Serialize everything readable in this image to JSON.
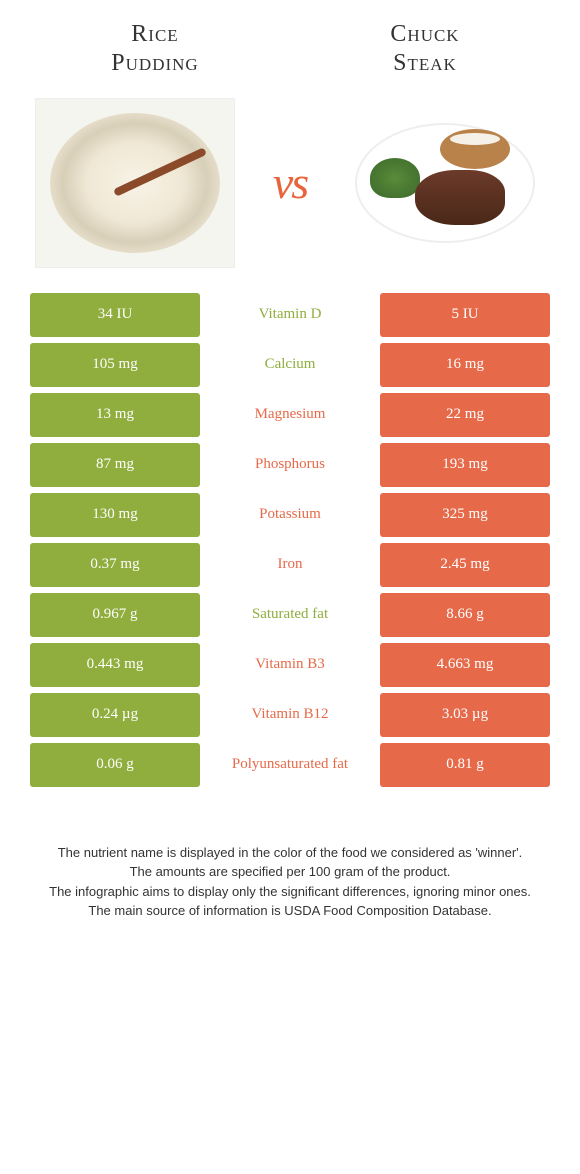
{
  "header": {
    "left_title_line1": "Rice",
    "left_title_line2": "Pudding",
    "right_title_line1": "Chuck",
    "right_title_line2": "Steak",
    "vs_label": "vs"
  },
  "colors": {
    "left": "#8fae3e",
    "right": "#e66a4a",
    "vs": "#e8643c"
  },
  "rows": [
    {
      "left": "34 IU",
      "label": "Vitamin D",
      "right": "5 IU",
      "winner": "left"
    },
    {
      "left": "105 mg",
      "label": "Calcium",
      "right": "16 mg",
      "winner": "left"
    },
    {
      "left": "13 mg",
      "label": "Magnesium",
      "right": "22 mg",
      "winner": "right"
    },
    {
      "left": "87 mg",
      "label": "Phosphorus",
      "right": "193 mg",
      "winner": "right"
    },
    {
      "left": "130 mg",
      "label": "Potassium",
      "right": "325 mg",
      "winner": "right"
    },
    {
      "left": "0.37 mg",
      "label": "Iron",
      "right": "2.45 mg",
      "winner": "right"
    },
    {
      "left": "0.967 g",
      "label": "Saturated fat",
      "right": "8.66 g",
      "winner": "left"
    },
    {
      "left": "0.443 mg",
      "label": "Vitamin B3",
      "right": "4.663 mg",
      "winner": "right"
    },
    {
      "left": "0.24 µg",
      "label": "Vitamin B12",
      "right": "3.03 µg",
      "winner": "right"
    },
    {
      "left": "0.06 g",
      "label": "Polyunsaturated fat",
      "right": "0.81 g",
      "winner": "right"
    }
  ],
  "footer": {
    "line1": "The nutrient name is displayed in the color of the food we considered as 'winner'.",
    "line2": "The amounts are specified per 100 gram of the product.",
    "line3": "The infographic aims to display only the significant differences, ignoring minor ones.",
    "line4": "The main source of information is USDA Food Composition Database."
  }
}
